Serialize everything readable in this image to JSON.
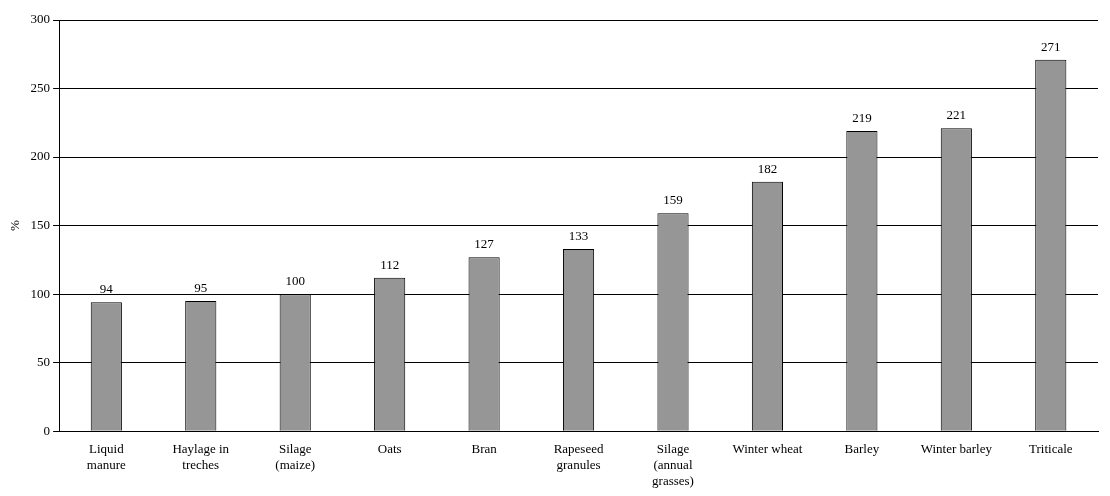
{
  "chart_data": {
    "type": "bar",
    "ylabel": "%",
    "categories": [
      "Liquid manure",
      "Haylage in treches",
      "Silage (maize)",
      "Oats",
      "Bran",
      "Rapeseed granules",
      "Silage (annual grasses)",
      "Winter wheat",
      "Barley",
      "Winter barley",
      "Triticale"
    ],
    "values": [
      94,
      95,
      100,
      112,
      127,
      133,
      159,
      182,
      219,
      221,
      271
    ],
    "color": "#969696",
    "ylim": [
      0,
      300
    ],
    "yticks": [
      0,
      50,
      100,
      150,
      200,
      250,
      300
    ],
    "grid": "y",
    "legend": false,
    "data_labels": true
  }
}
